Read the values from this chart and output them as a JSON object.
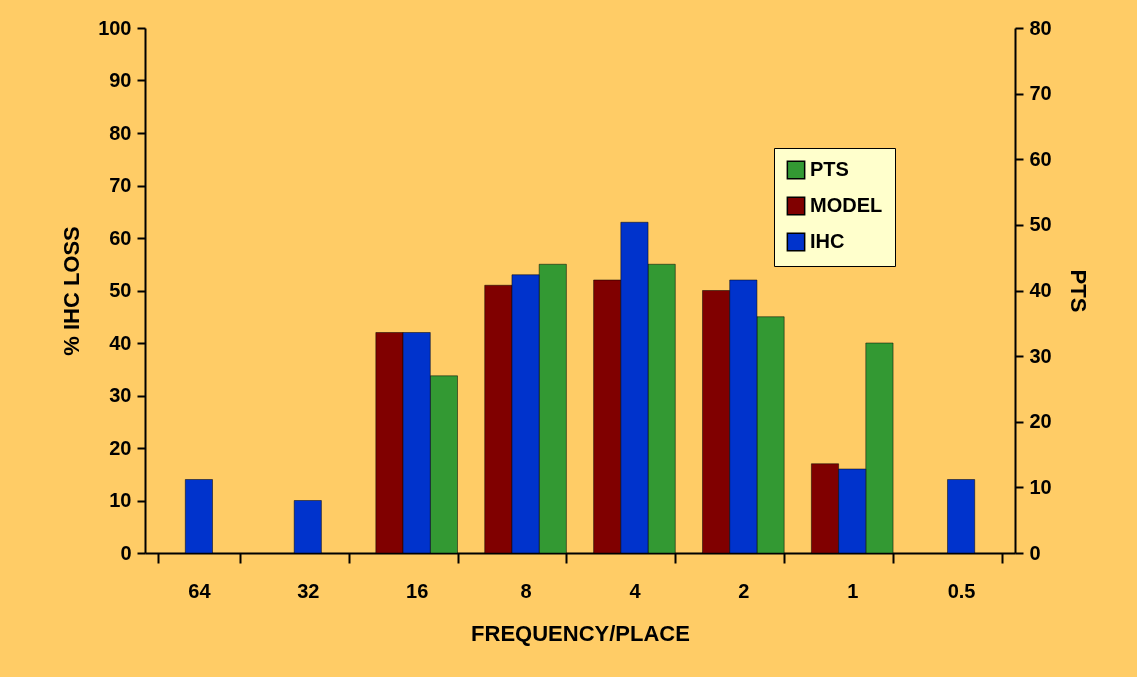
{
  "chart_data": {
    "type": "bar",
    "xlabel": "FREQUENCY/PLACE",
    "ylabel": "% IHC LOSS",
    "y2label": "PTS",
    "categories": [
      "64",
      "32",
      "16",
      "8",
      "4",
      "2",
      "1",
      "0.5"
    ],
    "series": [
      {
        "name": "PTS",
        "color": "#339933",
        "axis": "y2",
        "values": [
          null,
          null,
          27,
          44,
          44,
          36,
          32,
          null
        ]
      },
      {
        "name": "MODEL",
        "color": "#800000",
        "values": [
          null,
          null,
          42,
          51,
          52,
          50,
          17,
          null
        ]
      },
      {
        "name": "IHC",
        "color": "#0033cc",
        "values": [
          14,
          10,
          42,
          53,
          63,
          52,
          16,
          14
        ]
      }
    ],
    "ylim": [
      0,
      100
    ],
    "yticks": [
      0,
      10,
      20,
      30,
      40,
      50,
      60,
      70,
      80,
      90,
      100
    ],
    "y2lim": [
      0,
      80
    ],
    "y2ticks": [
      0,
      10,
      20,
      30,
      40,
      50,
      60,
      70,
      80
    ],
    "grid": false,
    "legend": "top right"
  }
}
